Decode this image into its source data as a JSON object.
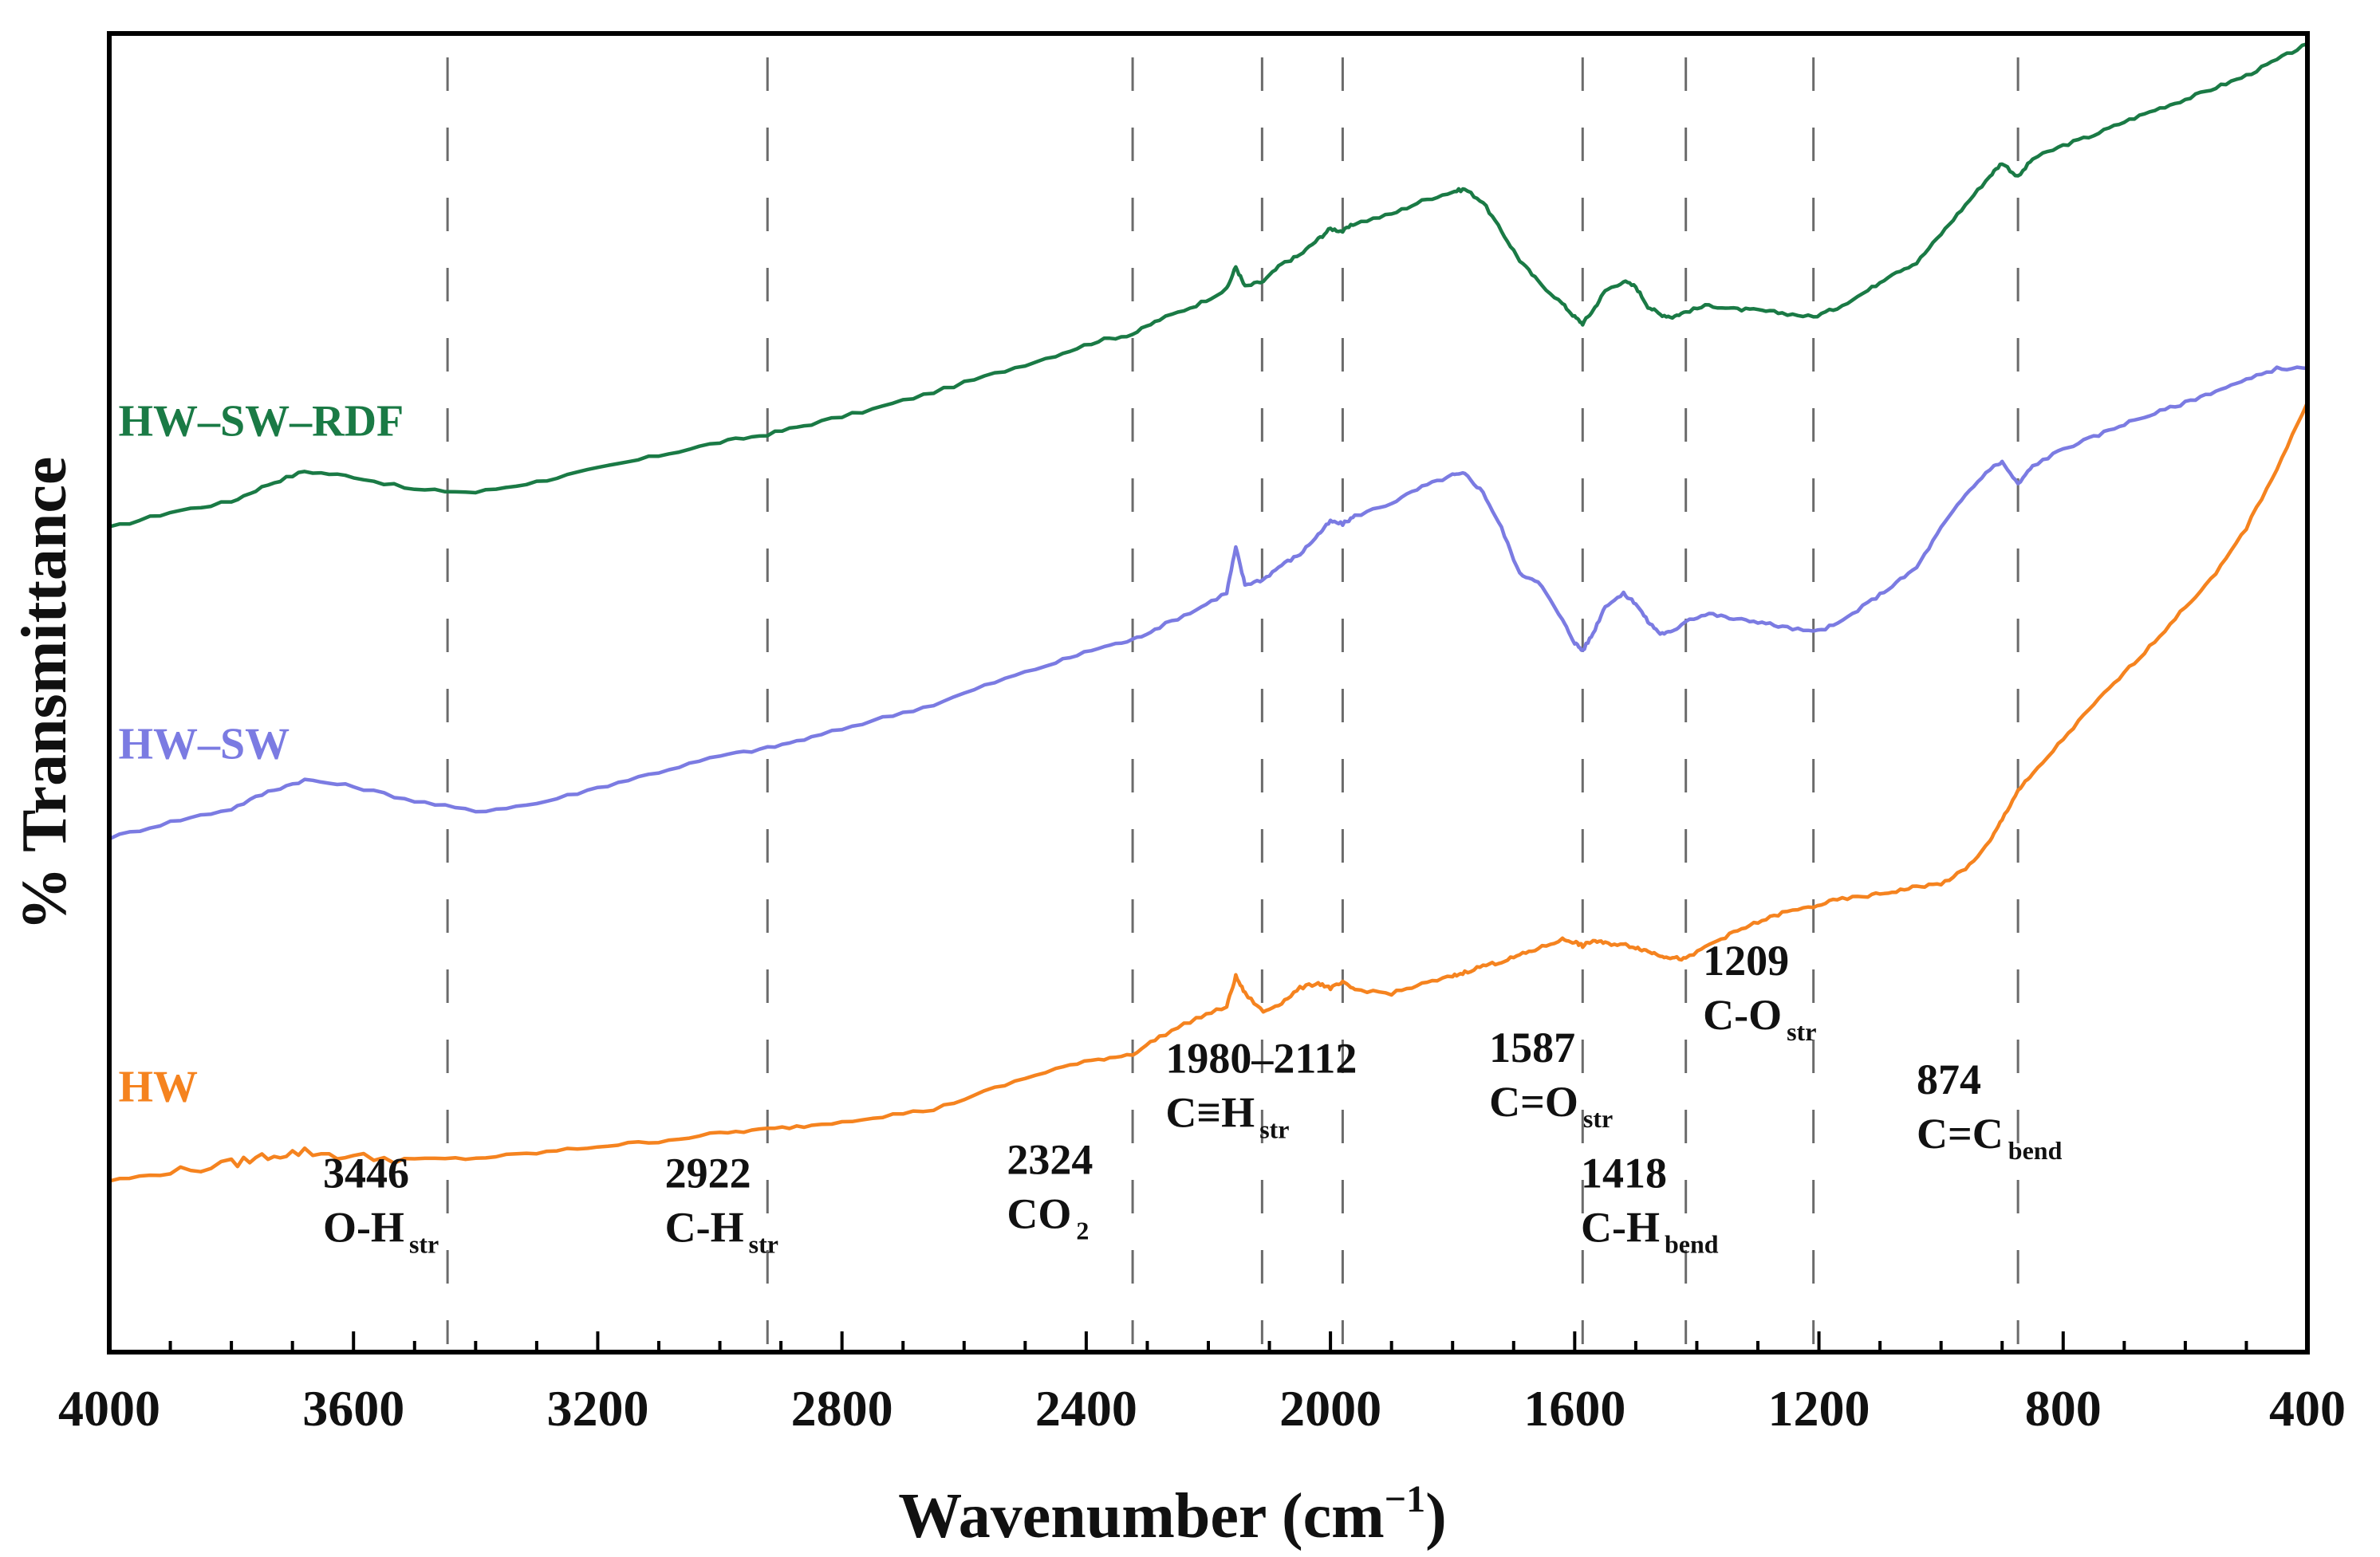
{
  "chart_data": {
    "type": "line",
    "title": "",
    "xlabel": "Wavenumber (cm⁻¹)",
    "xlabel_main": "Wavenumber (cm",
    "xlabel_sup": "−1",
    "xlabel_close": ")",
    "ylabel": "% Transmittance",
    "xlim": [
      4000,
      400
    ],
    "x_reversed": true,
    "ylim": [
      0,
      100
    ],
    "grid": false,
    "y_ticks_shown": false,
    "x_ticks": [
      "4000",
      "3600",
      "3200",
      "2800",
      "2400",
      "2000",
      "1600",
      "1200",
      "800",
      "400"
    ],
    "series": [
      {
        "name": "HW–SW–RDF",
        "color": "#1a7a45",
        "label_x": 3985,
        "label_y": 69.5,
        "x": [
          4000,
          3900,
          3800,
          3740,
          3680,
          3600,
          3500,
          3400,
          3300,
          3200,
          3100,
          3000,
          2922,
          2850,
          2750,
          2650,
          2550,
          2450,
          2380,
          2324,
          2280,
          2220,
          2170,
          2155,
          2140,
          2110,
          2080,
          2050,
          2020,
          2000,
          1980,
          1960,
          1900,
          1850,
          1800,
          1780,
          1750,
          1720,
          1690,
          1660,
          1620,
          1600,
          1587,
          1570,
          1550,
          1520,
          1500,
          1480,
          1460,
          1440,
          1418,
          1380,
          1340,
          1300,
          1260,
          1209,
          1170,
          1120,
          1080,
          1040,
          1000,
          960,
          920,
          900,
          874,
          850,
          800,
          750,
          700,
          650,
          600,
          550,
          500,
          450,
          400
        ],
        "y": [
          62.5,
          63.7,
          64.5,
          65.8,
          66.8,
          66.4,
          65.4,
          65.2,
          66.0,
          67.0,
          68.0,
          69.0,
          69.6,
          70.4,
          71.5,
          72.8,
          74.2,
          75.6,
          76.7,
          77.2,
          78.3,
          79.4,
          80.6,
          82.3,
          80.8,
          81.2,
          82.5,
          83.2,
          84.4,
          85.2,
          85.0,
          85.6,
          86.3,
          87.3,
          88.0,
          88.2,
          87.2,
          85.0,
          82.8,
          81.2,
          79.5,
          78.5,
          78.0,
          79.0,
          80.5,
          81.2,
          80.8,
          79.3,
          78.7,
          78.5,
          78.9,
          79.4,
          79.1,
          79.0,
          78.8,
          78.5,
          79.2,
          80.5,
          81.8,
          82.6,
          84.8,
          87.0,
          89.2,
          90.2,
          89.1,
          90.5,
          91.5,
          92.3,
          93.3,
          94.2,
          95.0,
          95.9,
          96.8,
          98.0,
          99.2
        ]
      },
      {
        "name": "HW–SW",
        "color": "#7b7be2",
        "label_x": 3985,
        "label_y": 45.0,
        "x": [
          4000,
          3900,
          3800,
          3740,
          3680,
          3600,
          3500,
          3400,
          3300,
          3200,
          3100,
          3000,
          2922,
          2850,
          2750,
          2650,
          2550,
          2450,
          2380,
          2324,
          2280,
          2220,
          2170,
          2155,
          2140,
          2110,
          2080,
          2050,
          2020,
          2000,
          1980,
          1960,
          1900,
          1850,
          1800,
          1780,
          1750,
          1720,
          1690,
          1660,
          1620,
          1600,
          1587,
          1570,
          1550,
          1520,
          1500,
          1480,
          1460,
          1440,
          1418,
          1380,
          1340,
          1300,
          1260,
          1209,
          1170,
          1120,
          1080,
          1040,
          1000,
          960,
          920,
          900,
          874,
          850,
          800,
          750,
          700,
          650,
          600,
          550,
          500,
          450,
          400
        ],
        "y": [
          39.0,
          40.2,
          41.2,
          42.5,
          43.4,
          42.9,
          41.8,
          41.0,
          41.6,
          42.8,
          44.0,
          45.2,
          45.8,
          46.6,
          47.9,
          49.1,
          50.8,
          52.3,
          53.4,
          54.0,
          55.0,
          56.3,
          57.6,
          61.0,
          58.2,
          58.6,
          59.7,
          60.5,
          62.0,
          63.0,
          62.8,
          63.4,
          64.4,
          65.6,
          66.5,
          66.6,
          65.2,
          62.5,
          59.0,
          58.5,
          55.5,
          53.8,
          53.2,
          54.5,
          56.6,
          57.5,
          56.8,
          55.4,
          54.5,
          54.6,
          55.5,
          56.0,
          55.6,
          55.4,
          55.0,
          54.6,
          55.2,
          56.8,
          58.1,
          59.5,
          62.5,
          65.0,
          67.0,
          67.5,
          65.8,
          67.2,
          68.5,
          69.4,
          70.4,
          71.2,
          72.0,
          72.9,
          73.7,
          74.6,
          74.6
        ]
      },
      {
        "name": "HW",
        "color": "#f5831f",
        "label_x": 3985,
        "label_y": 19.0,
        "x": [
          4000,
          3900,
          3800,
          3740,
          3680,
          3600,
          3500,
          3400,
          3300,
          3200,
          3100,
          3000,
          2922,
          2850,
          2750,
          2650,
          2550,
          2450,
          2380,
          2324,
          2280,
          2220,
          2170,
          2155,
          2140,
          2110,
          2080,
          2050,
          2020,
          2000,
          1980,
          1960,
          1900,
          1850,
          1800,
          1780,
          1750,
          1720,
          1690,
          1660,
          1620,
          1600,
          1587,
          1570,
          1550,
          1520,
          1500,
          1480,
          1460,
          1440,
          1418,
          1380,
          1340,
          1300,
          1260,
          1209,
          1170,
          1120,
          1080,
          1040,
          1000,
          960,
          920,
          900,
          874,
          850,
          800,
          750,
          700,
          650,
          600,
          550,
          500,
          450,
          400
        ],
        "y": [
          13.0,
          13.6,
          14.3,
          14.9,
          15.2,
          14.8,
          14.6,
          14.7,
          15.1,
          15.6,
          16.0,
          16.6,
          16.9,
          17.2,
          17.8,
          18.4,
          20.0,
          21.5,
          22.2,
          22.6,
          23.9,
          25.3,
          26.2,
          28.5,
          27.2,
          25.8,
          26.5,
          27.6,
          28.0,
          27.6,
          28.0,
          27.5,
          27.2,
          27.9,
          28.5,
          28.8,
          29.3,
          29.6,
          30.1,
          30.6,
          31.3,
          31.1,
          30.8,
          31.2,
          31.0,
          30.9,
          30.7,
          30.4,
          30.1,
          29.9,
          29.8,
          30.9,
          31.8,
          32.6,
          33.3,
          33.8,
          34.3,
          34.6,
          34.9,
          35.3,
          35.5,
          36.6,
          38.7,
          40.4,
          42.6,
          43.8,
          46.5,
          49.1,
          51.5,
          53.9,
          56.5,
          59.0,
          62.5,
          67.0,
          72.0
        ]
      }
    ],
    "markers": [
      {
        "x": 3446,
        "value": "3446",
        "label": "O-H",
        "sub": "str",
        "lx": 3650,
        "ly": 12.5
      },
      {
        "x": 2922,
        "value": "2922",
        "label": "C-H",
        "sub": "str",
        "lx": 3090,
        "ly": 12.5
      },
      {
        "x": 2324,
        "value": "2324",
        "label": "CO",
        "sub": "2",
        "lx": 2530,
        "ly": 13.5
      },
      {
        "x": 2112,
        "value": null
      },
      {
        "x": 1980,
        "value": "1980–2112",
        "label": "C≡H",
        "sub": "str",
        "lx": 2270,
        "ly": 21.2
      },
      {
        "x": 1587,
        "value": "1587",
        "label": "C=O",
        "sub": "str",
        "lx": 1740,
        "ly": 22.0
      },
      {
        "x": 1418,
        "value": "1418",
        "label": "C-H",
        "sub": "bend",
        "lx": 1590,
        "ly": 12.5
      },
      {
        "x": 1209,
        "value": "1209",
        "label": "C-O",
        "sub": "str",
        "lx": 1390,
        "ly": 28.6
      },
      {
        "x": 874,
        "value": "874",
        "label": "C=C",
        "sub": "bend",
        "lx": 1040,
        "ly": 19.6
      }
    ]
  }
}
